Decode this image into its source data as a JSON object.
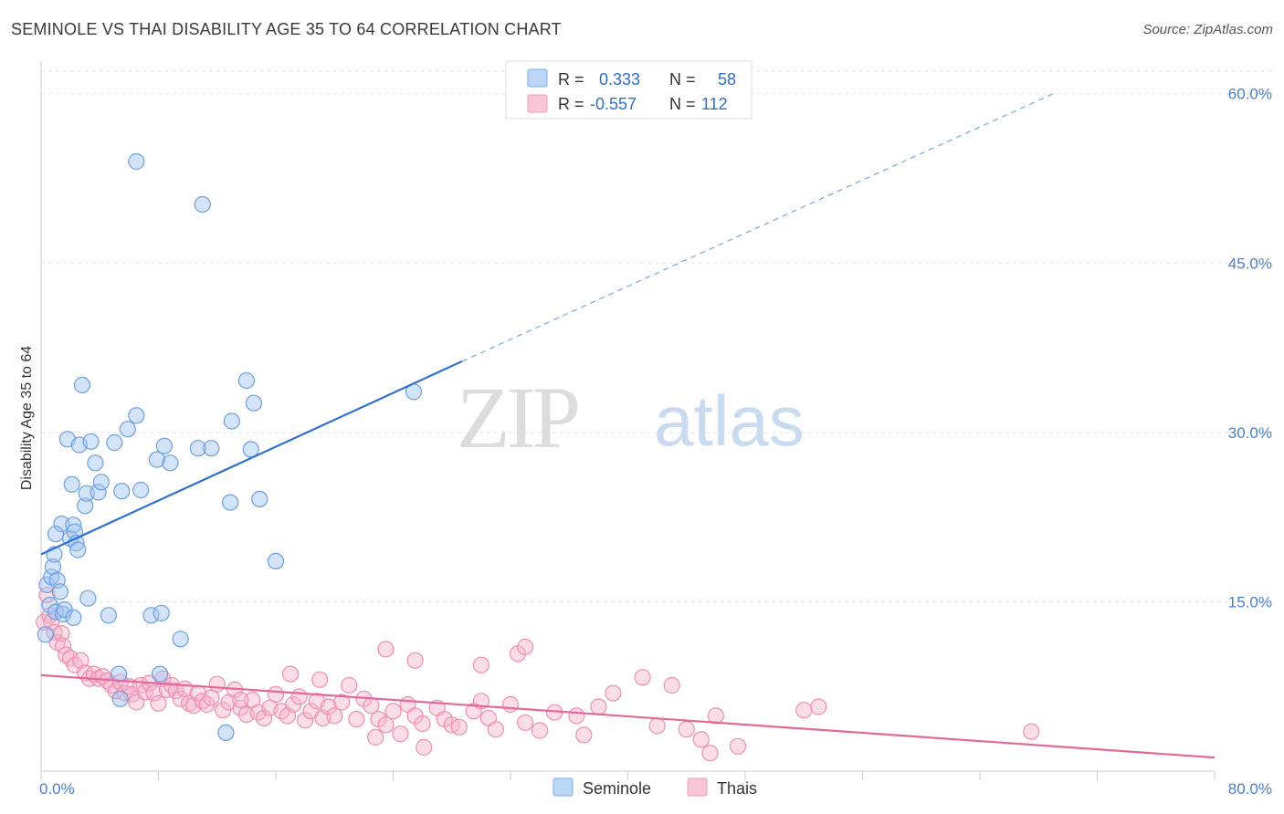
{
  "header": {
    "title": "SEMINOLE VS THAI DISABILITY AGE 35 TO 64 CORRELATION CHART",
    "source": "Source: ZipAtlas.com"
  },
  "watermark": {
    "zip": "ZIP",
    "atlas": "atlas"
  },
  "legend_top": {
    "rows": [
      {
        "r_label": "R =",
        "r_value": "0.333",
        "n_label": "N =",
        "n_value": "58",
        "color": "#7aaee8"
      },
      {
        "r_label": "R =",
        "r_value": "-0.557",
        "n_label": "N =",
        "n_value": "112",
        "color": "#f19bb8"
      }
    ]
  },
  "legend_bottom": {
    "items": [
      "Seminole",
      "Thais"
    ]
  },
  "chart_data": {
    "type": "scatter",
    "title": "SEMINOLE VS THAI DISABILITY AGE 35 TO 64 CORRELATION CHART",
    "ylabel": "Disability Age 35 to 64",
    "xlabel": "",
    "xlim": [
      0,
      80
    ],
    "ylim": [
      0,
      62
    ],
    "x_tick_labels": [
      "0.0%",
      "80.0%"
    ],
    "y_ticks": [
      15,
      30,
      45,
      60
    ],
    "y_tick_labels": [
      "15.0%",
      "30.0%",
      "45.0%",
      "60.0%"
    ],
    "grid": true,
    "colors": {
      "seminole": "#5b93d9",
      "thais": "#ef7aa3",
      "axis_text": "#4a7fd0"
    },
    "series": [
      {
        "name": "Seminole",
        "r": 0.333,
        "n": 58,
        "trend": {
          "x0": 0,
          "y0": 19.2,
          "x1": 28.7,
          "y1": 36.3,
          "dash_to_x": 69,
          "dash_to_y": 60.0
        },
        "points": [
          [
            0.3,
            12.1
          ],
          [
            0.4,
            16.5
          ],
          [
            0.6,
            14.7
          ],
          [
            0.7,
            17.2
          ],
          [
            0.8,
            18.1
          ],
          [
            0.9,
            19.2
          ],
          [
            1.0,
            14.1
          ],
          [
            1.1,
            16.9
          ],
          [
            1.3,
            15.9
          ],
          [
            1.4,
            21.9
          ],
          [
            1.5,
            13.9
          ],
          [
            1.6,
            14.3
          ],
          [
            1.8,
            29.4
          ],
          [
            2.0,
            20.6
          ],
          [
            2.1,
            25.4
          ],
          [
            2.2,
            21.8
          ],
          [
            2.3,
            21.2
          ],
          [
            2.4,
            20.2
          ],
          [
            2.5,
            19.6
          ],
          [
            2.6,
            28.9
          ],
          [
            2.8,
            34.2
          ],
          [
            3.0,
            23.5
          ],
          [
            3.1,
            24.6
          ],
          [
            3.2,
            15.3
          ],
          [
            3.4,
            29.2
          ],
          [
            3.7,
            27.3
          ],
          [
            3.9,
            24.7
          ],
          [
            4.1,
            25.6
          ],
          [
            4.6,
            13.8
          ],
          [
            5.0,
            29.1
          ],
          [
            5.3,
            8.6
          ],
          [
            5.4,
            6.4
          ],
          [
            5.5,
            24.8
          ],
          [
            5.9,
            30.3
          ],
          [
            6.5,
            31.5
          ],
          [
            6.5,
            54.0
          ],
          [
            6.8,
            24.9
          ],
          [
            7.5,
            13.8
          ],
          [
            7.9,
            27.6
          ],
          [
            8.1,
            8.6
          ],
          [
            8.2,
            14.0
          ],
          [
            8.4,
            28.8
          ],
          [
            8.8,
            27.3
          ],
          [
            9.5,
            11.7
          ],
          [
            10.7,
            28.6
          ],
          [
            11.0,
            50.2
          ],
          [
            11.6,
            28.6
          ],
          [
            12.6,
            3.4
          ],
          [
            12.9,
            23.8
          ],
          [
            13.0,
            31.0
          ],
          [
            14.0,
            34.6
          ],
          [
            14.3,
            28.5
          ],
          [
            14.5,
            32.6
          ],
          [
            14.9,
            24.1
          ],
          [
            16.0,
            18.6
          ],
          [
            25.4,
            33.6
          ],
          [
            2.2,
            13.6
          ],
          [
            1.0,
            21.0
          ]
        ]
      },
      {
        "name": "Thais",
        "r": -0.557,
        "n": 112,
        "trend": {
          "x0": 0,
          "y0": 8.5,
          "x1": 80,
          "y1": 1.2
        },
        "points": [
          [
            0.2,
            13.2
          ],
          [
            0.4,
            15.6
          ],
          [
            0.6,
            13.8
          ],
          [
            0.7,
            13.2
          ],
          [
            0.9,
            12.3
          ],
          [
            1.1,
            11.4
          ],
          [
            1.4,
            12.2
          ],
          [
            1.5,
            11.1
          ],
          [
            1.7,
            10.3
          ],
          [
            2.0,
            10.0
          ],
          [
            2.3,
            9.4
          ],
          [
            2.7,
            9.8
          ],
          [
            3.0,
            8.7
          ],
          [
            3.3,
            8.2
          ],
          [
            3.6,
            8.6
          ],
          [
            3.9,
            8.2
          ],
          [
            4.2,
            8.4
          ],
          [
            4.5,
            8.0
          ],
          [
            4.8,
            7.6
          ],
          [
            5.1,
            7.1
          ],
          [
            5.4,
            7.9
          ],
          [
            5.7,
            6.9
          ],
          [
            6.0,
            7.5
          ],
          [
            6.2,
            6.8
          ],
          [
            6.5,
            6.1
          ],
          [
            6.8,
            7.6
          ],
          [
            7.1,
            7.0
          ],
          [
            7.4,
            7.8
          ],
          [
            7.7,
            6.9
          ],
          [
            8.0,
            6.0
          ],
          [
            8.3,
            8.2
          ],
          [
            8.6,
            7.2
          ],
          [
            8.9,
            7.6
          ],
          [
            9.2,
            7.1
          ],
          [
            9.5,
            6.4
          ],
          [
            9.8,
            7.3
          ],
          [
            10.1,
            6.0
          ],
          [
            10.4,
            5.8
          ],
          [
            10.7,
            6.9
          ],
          [
            11.0,
            6.2
          ],
          [
            11.3,
            5.9
          ],
          [
            11.6,
            6.5
          ],
          [
            12.0,
            7.7
          ],
          [
            12.4,
            5.4
          ],
          [
            12.8,
            6.1
          ],
          [
            13.2,
            7.2
          ],
          [
            13.6,
            5.6
          ],
          [
            14.0,
            5.0
          ],
          [
            14.4,
            6.3
          ],
          [
            14.8,
            5.2
          ],
          [
            15.2,
            4.7
          ],
          [
            15.6,
            5.6
          ],
          [
            16.0,
            6.8
          ],
          [
            16.4,
            5.3
          ],
          [
            16.8,
            4.9
          ],
          [
            17.2,
            5.9
          ],
          [
            17.6,
            6.6
          ],
          [
            18.0,
            4.5
          ],
          [
            18.4,
            5.3
          ],
          [
            18.8,
            6.2
          ],
          [
            19.2,
            4.7
          ],
          [
            19.6,
            5.7
          ],
          [
            20.0,
            4.9
          ],
          [
            20.5,
            6.1
          ],
          [
            21.0,
            7.6
          ],
          [
            21.5,
            4.6
          ],
          [
            22.0,
            6.4
          ],
          [
            22.5,
            5.8
          ],
          [
            23.0,
            4.6
          ],
          [
            23.5,
            4.1
          ],
          [
            24.0,
            5.3
          ],
          [
            24.5,
            3.3
          ],
          [
            25.0,
            5.9
          ],
          [
            25.5,
            4.9
          ],
          [
            26.0,
            4.2
          ],
          [
            27.0,
            5.6
          ],
          [
            27.5,
            4.6
          ],
          [
            28.0,
            4.1
          ],
          [
            28.5,
            3.9
          ],
          [
            29.5,
            5.3
          ],
          [
            30.0,
            6.2
          ],
          [
            30.5,
            4.7
          ],
          [
            31.0,
            3.7
          ],
          [
            32.0,
            5.9
          ],
          [
            33.0,
            4.3
          ],
          [
            34.0,
            3.6
          ],
          [
            35.0,
            5.2
          ],
          [
            36.5,
            4.9
          ],
          [
            37.0,
            3.2
          ],
          [
            38.0,
            5.7
          ],
          [
            39.0,
            6.9
          ],
          [
            41.0,
            8.3
          ],
          [
            42.0,
            4.0
          ],
          [
            43.0,
            7.6
          ],
          [
            44.0,
            3.7
          ],
          [
            45.0,
            2.8
          ],
          [
            46.0,
            4.9
          ],
          [
            47.5,
            2.2
          ],
          [
            52.0,
            5.4
          ],
          [
            53.0,
            5.7
          ],
          [
            67.5,
            3.5
          ],
          [
            23.5,
            10.8
          ],
          [
            25.5,
            9.8
          ],
          [
            30.0,
            9.4
          ],
          [
            32.5,
            10.4
          ],
          [
            33.0,
            11.0
          ],
          [
            17.0,
            8.6
          ],
          [
            19.0,
            8.1
          ],
          [
            13.6,
            6.3
          ],
          [
            45.6,
            1.6
          ],
          [
            22.8,
            3.0
          ],
          [
            26.1,
            2.1
          ]
        ]
      }
    ]
  }
}
